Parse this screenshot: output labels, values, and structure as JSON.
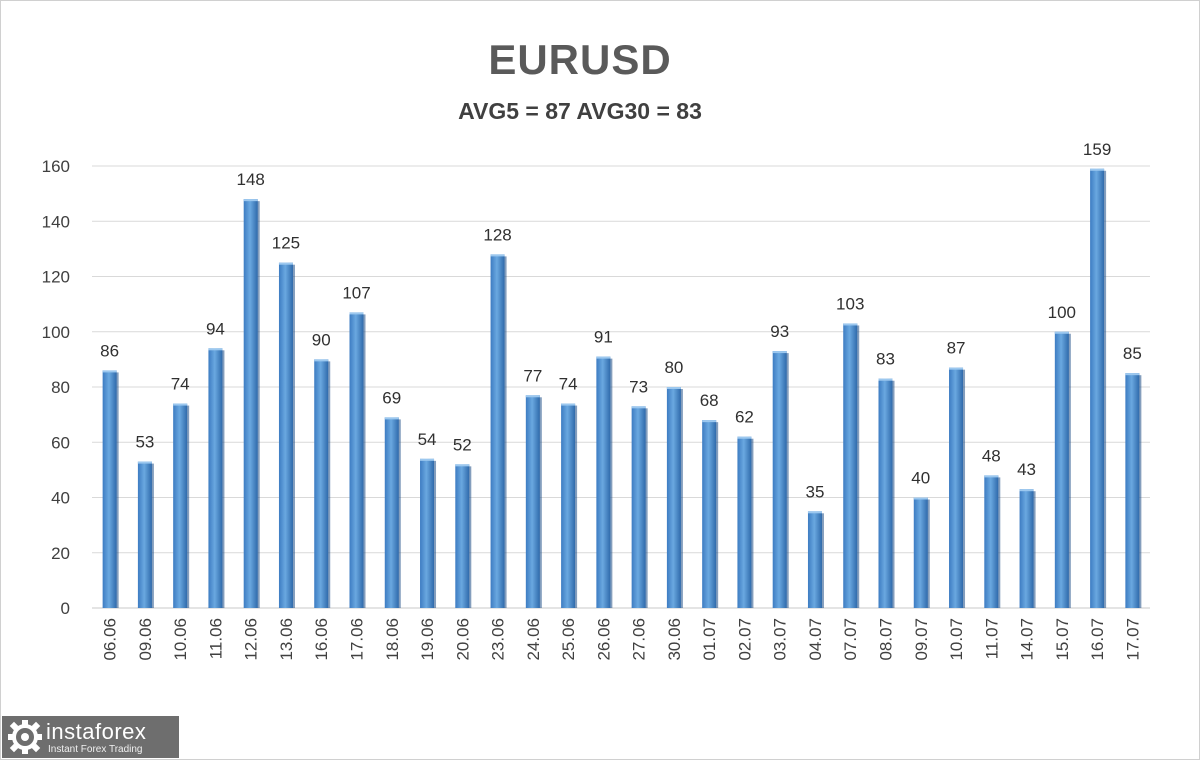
{
  "chart_data": {
    "type": "bar",
    "title": "EURUSD",
    "subtitle": "AVG5 = 87 AVG30 = 83",
    "xlabel": "",
    "ylabel": "",
    "categories": [
      "06.06",
      "09.06",
      "10.06",
      "11.06",
      "12.06",
      "13.06",
      "16.06",
      "17.06",
      "18.06",
      "19.06",
      "20.06",
      "23.06",
      "24.06",
      "25.06",
      "26.06",
      "27.06",
      "30.06",
      "01.07",
      "02.07",
      "03.07",
      "04.07",
      "07.07",
      "08.07",
      "09.07",
      "10.07",
      "11.07",
      "14.07",
      "15.07",
      "16.07",
      "17.07"
    ],
    "values": [
      86,
      53,
      74,
      94,
      148,
      125,
      90,
      107,
      69,
      54,
      52,
      128,
      77,
      74,
      91,
      73,
      80,
      68,
      62,
      93,
      35,
      103,
      83,
      40,
      87,
      48,
      43,
      100,
      159,
      85
    ],
    "ylim": [
      0,
      160
    ],
    "yticks": [
      0,
      20,
      40,
      60,
      80,
      100,
      120,
      140,
      160
    ],
    "grid": true,
    "bar_color": "#5b9bd5",
    "data_labels": true
  },
  "watermark": {
    "brand": "instaforex",
    "tagline": "Instant Forex Trading"
  }
}
